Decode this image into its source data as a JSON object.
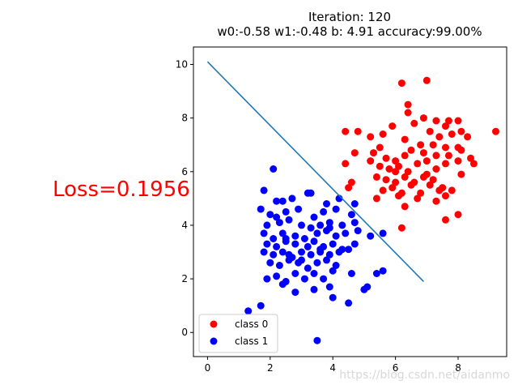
{
  "chart_data": {
    "type": "scatter",
    "title_line1": "Iteration: 120",
    "title_line2": "w0:-0.58 w1:-0.48 b: 4.91 accuracy:99.00%",
    "annotation": "Loss=0.1956",
    "watermark": "https://blog.csdn.net/aidanmo",
    "xlim": [
      -0.45,
      9.55
    ],
    "ylim": [
      -0.9,
      10.65
    ],
    "x_ticks": [
      0,
      2,
      4,
      6,
      8
    ],
    "y_ticks": [
      0,
      2,
      4,
      6,
      8,
      10
    ],
    "x_tick_labels": [
      "0",
      "2",
      "4",
      "6",
      "8"
    ],
    "y_tick_labels": [
      "0",
      "2",
      "4",
      "6",
      "8",
      "10"
    ],
    "grid": false,
    "legend_position": "lower-left",
    "decision_line": {
      "color": "#1f77b4",
      "x": [
        0.0,
        6.9
      ],
      "y": [
        10.1,
        1.9
      ]
    },
    "series": [
      {
        "name": "class 0",
        "color": "#ff0000",
        "points": [
          [
            6.2,
            9.3
          ],
          [
            7.0,
            9.4
          ],
          [
            6.4,
            8.5
          ],
          [
            6.9,
            8.0
          ],
          [
            6.4,
            8.2
          ],
          [
            7.3,
            7.9
          ],
          [
            7.7,
            7.9
          ],
          [
            8.0,
            7.9
          ],
          [
            7.6,
            7.7
          ],
          [
            4.4,
            7.5
          ],
          [
            4.8,
            7.5
          ],
          [
            5.2,
            7.3
          ],
          [
            5.6,
            7.4
          ],
          [
            5.9,
            7.7
          ],
          [
            6.6,
            7.8
          ],
          [
            7.1,
            7.5
          ],
          [
            7.4,
            7.3
          ],
          [
            7.8,
            7.4
          ],
          [
            8.1,
            7.5
          ],
          [
            9.2,
            7.5
          ],
          [
            6.3,
            7.2
          ],
          [
            6.8,
            7.0
          ],
          [
            7.2,
            7.0
          ],
          [
            7.6,
            6.9
          ],
          [
            8.0,
            6.9
          ],
          [
            8.3,
            7.3
          ],
          [
            5.5,
            6.9
          ],
          [
            5.3,
            6.7
          ],
          [
            5.7,
            6.5
          ],
          [
            6.0,
            6.4
          ],
          [
            6.3,
            6.6
          ],
          [
            6.5,
            6.8
          ],
          [
            6.9,
            6.7
          ],
          [
            7.3,
            6.6
          ],
          [
            7.7,
            6.6
          ],
          [
            8.1,
            6.8
          ],
          [
            8.4,
            6.5
          ],
          [
            4.7,
            6.7
          ],
          [
            4.4,
            6.3
          ],
          [
            5.2,
            6.4
          ],
          [
            5.5,
            6.2
          ],
          [
            5.8,
            6.1
          ],
          [
            6.1,
            6.2
          ],
          [
            6.4,
            6.0
          ],
          [
            6.7,
            6.3
          ],
          [
            7.0,
            6.4
          ],
          [
            7.3,
            6.1
          ],
          [
            7.6,
            6.3
          ],
          [
            8.0,
            6.4
          ],
          [
            8.5,
            6.3
          ],
          [
            5.4,
            5.8
          ],
          [
            5.7,
            5.7
          ],
          [
            6.0,
            5.6
          ],
          [
            6.3,
            5.8
          ],
          [
            6.6,
            5.6
          ],
          [
            6.9,
            5.8
          ],
          [
            7.2,
            5.7
          ],
          [
            7.5,
            5.4
          ],
          [
            7.8,
            5.3
          ],
          [
            4.5,
            5.4
          ],
          [
            4.6,
            5.6
          ],
          [
            5.6,
            5.3
          ],
          [
            5.9,
            5.4
          ],
          [
            6.2,
            5.2
          ],
          [
            6.5,
            5.5
          ],
          [
            6.8,
            5.2
          ],
          [
            7.1,
            5.5
          ],
          [
            7.4,
            5.3
          ],
          [
            7.6,
            5.1
          ],
          [
            8.1,
            5.9
          ],
          [
            5.4,
            5.0
          ],
          [
            6.1,
            5.1
          ],
          [
            6.7,
            5.0
          ],
          [
            7.3,
            4.9
          ],
          [
            6.3,
            4.7
          ],
          [
            7.6,
            4.2
          ],
          [
            8.0,
            4.4
          ],
          [
            6.2,
            3.9
          ],
          [
            7.0,
            5.9
          ],
          [
            6.0,
            6.0
          ]
        ]
      },
      {
        "name": "class 1",
        "color": "#0000ff",
        "points": [
          [
            2.1,
            6.1
          ],
          [
            1.8,
            5.3
          ],
          [
            3.2,
            5.2
          ],
          [
            3.3,
            5.2
          ],
          [
            2.4,
            4.9
          ],
          [
            2.7,
            5.0
          ],
          [
            3.8,
            4.8
          ],
          [
            4.2,
            5.0
          ],
          [
            4.7,
            4.8
          ],
          [
            1.7,
            4.6
          ],
          [
            2.0,
            4.4
          ],
          [
            2.2,
            4.3
          ],
          [
            2.5,
            4.5
          ],
          [
            2.9,
            4.6
          ],
          [
            3.4,
            4.3
          ],
          [
            3.7,
            4.5
          ],
          [
            4.1,
            4.6
          ],
          [
            4.6,
            4.4
          ],
          [
            1.9,
            4.0
          ],
          [
            2.3,
            4.1
          ],
          [
            2.6,
            4.2
          ],
          [
            3.0,
            4.0
          ],
          [
            3.3,
            3.9
          ],
          [
            3.6,
            4.0
          ],
          [
            3.9,
            3.9
          ],
          [
            4.3,
            4.0
          ],
          [
            4.7,
            4.1
          ],
          [
            1.8,
            3.7
          ],
          [
            2.1,
            3.5
          ],
          [
            2.4,
            3.7
          ],
          [
            2.8,
            3.6
          ],
          [
            3.1,
            3.5
          ],
          [
            3.5,
            3.7
          ],
          [
            3.8,
            3.8
          ],
          [
            4.1,
            3.6
          ],
          [
            4.4,
            3.7
          ],
          [
            4.8,
            3.8
          ],
          [
            5.2,
            3.6
          ],
          [
            5.6,
            3.7
          ],
          [
            1.9,
            3.3
          ],
          [
            2.2,
            3.2
          ],
          [
            2.5,
            3.4
          ],
          [
            2.8,
            3.3
          ],
          [
            3.2,
            3.2
          ],
          [
            3.4,
            3.4
          ],
          [
            3.7,
            3.2
          ],
          [
            4.0,
            3.3
          ],
          [
            4.3,
            3.1
          ],
          [
            4.7,
            3.3
          ],
          [
            1.8,
            3.0
          ],
          [
            2.1,
            2.9
          ],
          [
            2.4,
            3.0
          ],
          [
            2.7,
            2.8
          ],
          [
            3.0,
            3.0
          ],
          [
            3.3,
            2.9
          ],
          [
            3.6,
            3.1
          ],
          [
            3.9,
            2.9
          ],
          [
            4.2,
            3.0
          ],
          [
            4.5,
            3.1
          ],
          [
            2.0,
            2.6
          ],
          [
            2.3,
            2.5
          ],
          [
            2.6,
            2.7
          ],
          [
            2.9,
            2.6
          ],
          [
            3.2,
            2.4
          ],
          [
            3.5,
            2.6
          ],
          [
            3.8,
            2.7
          ],
          [
            4.1,
            2.5
          ],
          [
            1.9,
            2.0
          ],
          [
            2.2,
            2.1
          ],
          [
            2.5,
            1.9
          ],
          [
            2.8,
            2.2
          ],
          [
            3.1,
            2.0
          ],
          [
            3.4,
            2.2
          ],
          [
            3.7,
            2.0
          ],
          [
            4.0,
            2.3
          ],
          [
            4.6,
            2.2
          ],
          [
            5.4,
            2.2
          ],
          [
            5.6,
            2.3
          ],
          [
            2.4,
            1.8
          ],
          [
            2.8,
            1.5
          ],
          [
            3.4,
            1.6
          ],
          [
            3.9,
            1.7
          ],
          [
            5.0,
            1.6
          ],
          [
            5.1,
            1.7
          ],
          [
            4.0,
            1.3
          ],
          [
            4.5,
            1.1
          ],
          [
            1.7,
            1.0
          ],
          [
            1.3,
            0.8
          ],
          [
            3.5,
            -0.3
          ],
          [
            2.6,
            2.9
          ],
          [
            3.0,
            2.7
          ],
          [
            3.6,
            3.0
          ],
          [
            2.2,
            4.9
          ],
          [
            2.5,
            3.5
          ],
          [
            3.9,
            4.1
          ]
        ]
      }
    ]
  }
}
